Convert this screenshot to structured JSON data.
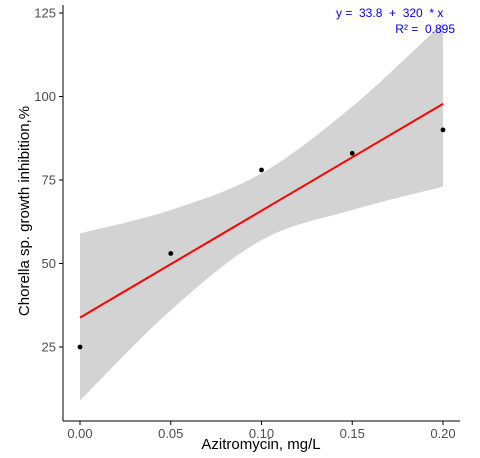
{
  "chart_data": {
    "type": "scatter",
    "xlabel": "Azitromycin, mg/L",
    "ylabel": "Chorella sp. growth inhibition,%",
    "xlim": [
      -0.01,
      0.21
    ],
    "ylim": [
      3,
      127
    ],
    "x_ticks": [
      0.0,
      0.05,
      0.1,
      0.15,
      0.2
    ],
    "x_tick_labels": [
      "0.00",
      "0.05",
      "0.10",
      "0.15",
      "0.20"
    ],
    "y_ticks": [
      25,
      50,
      75,
      100,
      125
    ],
    "y_tick_labels": [
      "25",
      "50",
      "75",
      "100",
      "125"
    ],
    "grid": false,
    "points": [
      {
        "x": 0.0,
        "y": 25
      },
      {
        "x": 0.05,
        "y": 53
      },
      {
        "x": 0.1,
        "y": 78
      },
      {
        "x": 0.15,
        "y": 83
      },
      {
        "x": 0.2,
        "y": 90
      }
    ],
    "fit": {
      "type": "linear",
      "intercept": 33.8,
      "slope": 320,
      "r_squared": 0.895
    },
    "confidence_band": {
      "x": [
        0.0,
        0.05,
        0.1,
        0.15,
        0.2
      ],
      "lower": [
        9,
        36,
        57,
        66,
        73
      ],
      "upper": [
        59,
        66,
        77,
        97,
        122
      ]
    },
    "annotations": {
      "equation": "y =  33.8  +  320  * x",
      "r2": "R² =  0.895"
    },
    "colors": {
      "fit_line": "#ff0000",
      "band": "#d3d3d3",
      "points": "#000000",
      "annotation": "#0000ff",
      "axis": "#000000"
    }
  }
}
